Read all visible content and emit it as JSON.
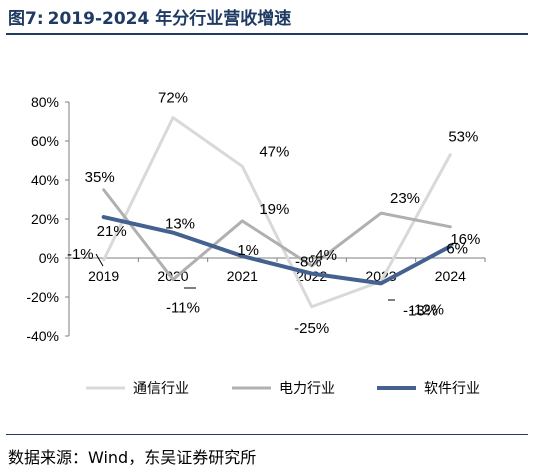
{
  "figure": {
    "label": "图7:",
    "title": "2019-2024 年分行业营收增速",
    "source": "数据来源：Wind，东吴证券研究所"
  },
  "colors": {
    "title": "#1f3b63",
    "telecom": "#d9d9d9",
    "power": "#b0b0b0",
    "software": "#44618f"
  },
  "chart_data": {
    "type": "line",
    "categories": [
      "2019",
      "2020",
      "2021",
      "2022",
      "2023",
      "2024"
    ],
    "y_ticks": [
      "80%",
      "60%",
      "40%",
      "20%",
      "0%",
      "-20%",
      "-40%"
    ],
    "ylim": [
      -40,
      80
    ],
    "grid": false,
    "legend_position": "bottom",
    "series": [
      {
        "name": "通信行业",
        "color_key": "telecom",
        "values": [
          -1,
          72,
          47,
          -25,
          -12,
          53
        ],
        "labels": [
          "-1%",
          "72%",
          "47%",
          "-25%",
          "-12%",
          "53%"
        ]
      },
      {
        "name": "电力行业",
        "color_key": "power",
        "values": [
          35,
          -11,
          19,
          -4,
          23,
          16
        ],
        "labels": [
          "35%",
          "-11%",
          "19%",
          "-4%",
          "23%",
          "16%"
        ]
      },
      {
        "name": "软件行业",
        "color_key": "software",
        "values": [
          21,
          13,
          1,
          -8,
          -13,
          6
        ],
        "labels": [
          "21%",
          "13%",
          "1%",
          "-8%",
          "-13%",
          "6%"
        ]
      }
    ]
  }
}
